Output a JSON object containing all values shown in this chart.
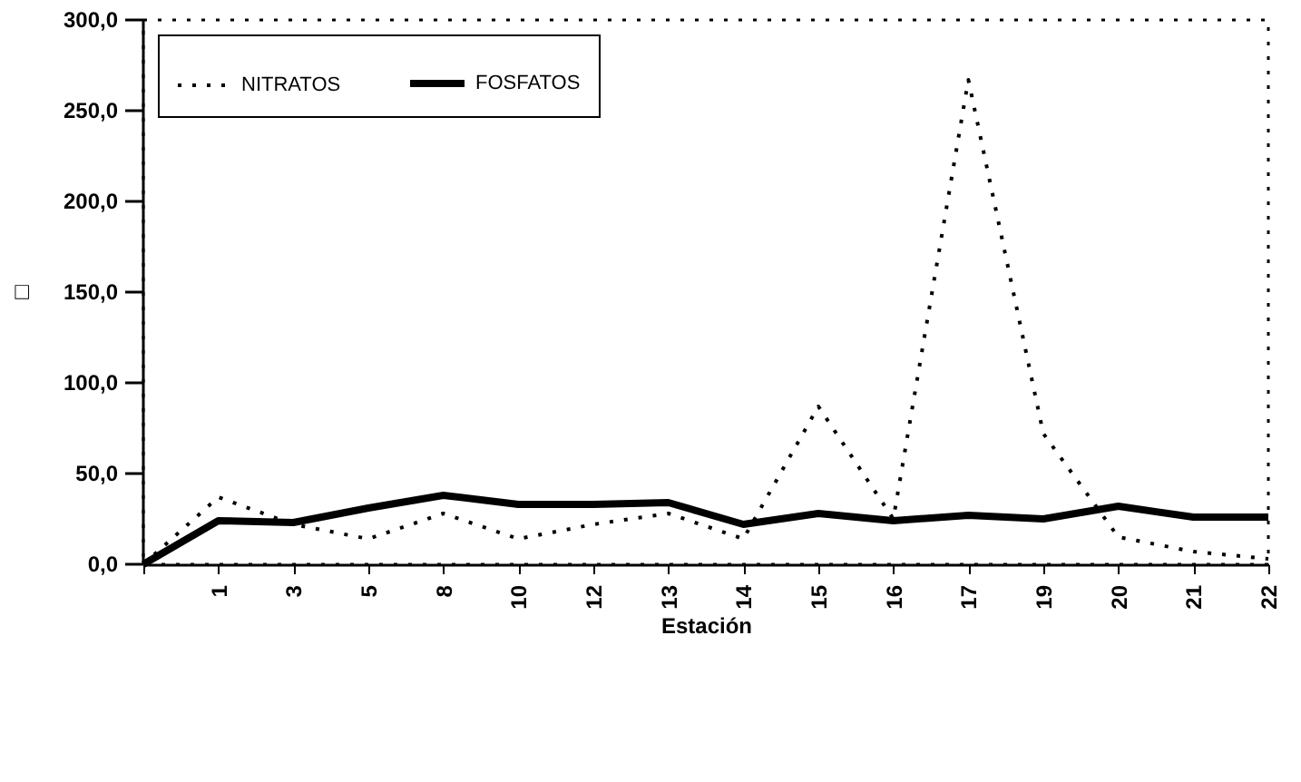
{
  "chart_data": {
    "type": "line",
    "xlabel": "Estación",
    "ylabel": "□",
    "categories": [
      null,
      "1",
      "3",
      "5",
      "8",
      "10",
      "12",
      "13",
      "14",
      "15",
      "16",
      "17",
      "19",
      "20",
      "21",
      "22"
    ],
    "series": [
      {
        "name": "NITRATOS",
        "color": "#000000",
        "line_style": "dotted",
        "values": [
          0,
          37,
          22,
          14,
          28,
          14,
          22,
          28,
          14,
          87,
          25,
          267,
          72,
          15,
          7,
          3
        ]
      },
      {
        "name": "FOSFATOS",
        "color": "#000000",
        "line_style": "solid",
        "values": [
          0,
          24,
          23,
          31,
          38,
          33,
          33,
          34,
          22,
          28,
          24,
          27,
          25,
          32,
          26,
          26
        ]
      }
    ],
    "ylim": [
      0,
      300
    ],
    "yticks": [
      {
        "value": 0,
        "label": "0,0"
      },
      {
        "value": 50,
        "label": "50,0"
      },
      {
        "value": 100,
        "label": "100,0"
      },
      {
        "value": 150,
        "label": "150,0"
      },
      {
        "value": 200,
        "label": "200,0"
      },
      {
        "value": 250,
        "label": "250,0"
      },
      {
        "value": 300,
        "label": "300,0"
      }
    ],
    "grid": false,
    "legend": "top left",
    "marker": "none"
  }
}
